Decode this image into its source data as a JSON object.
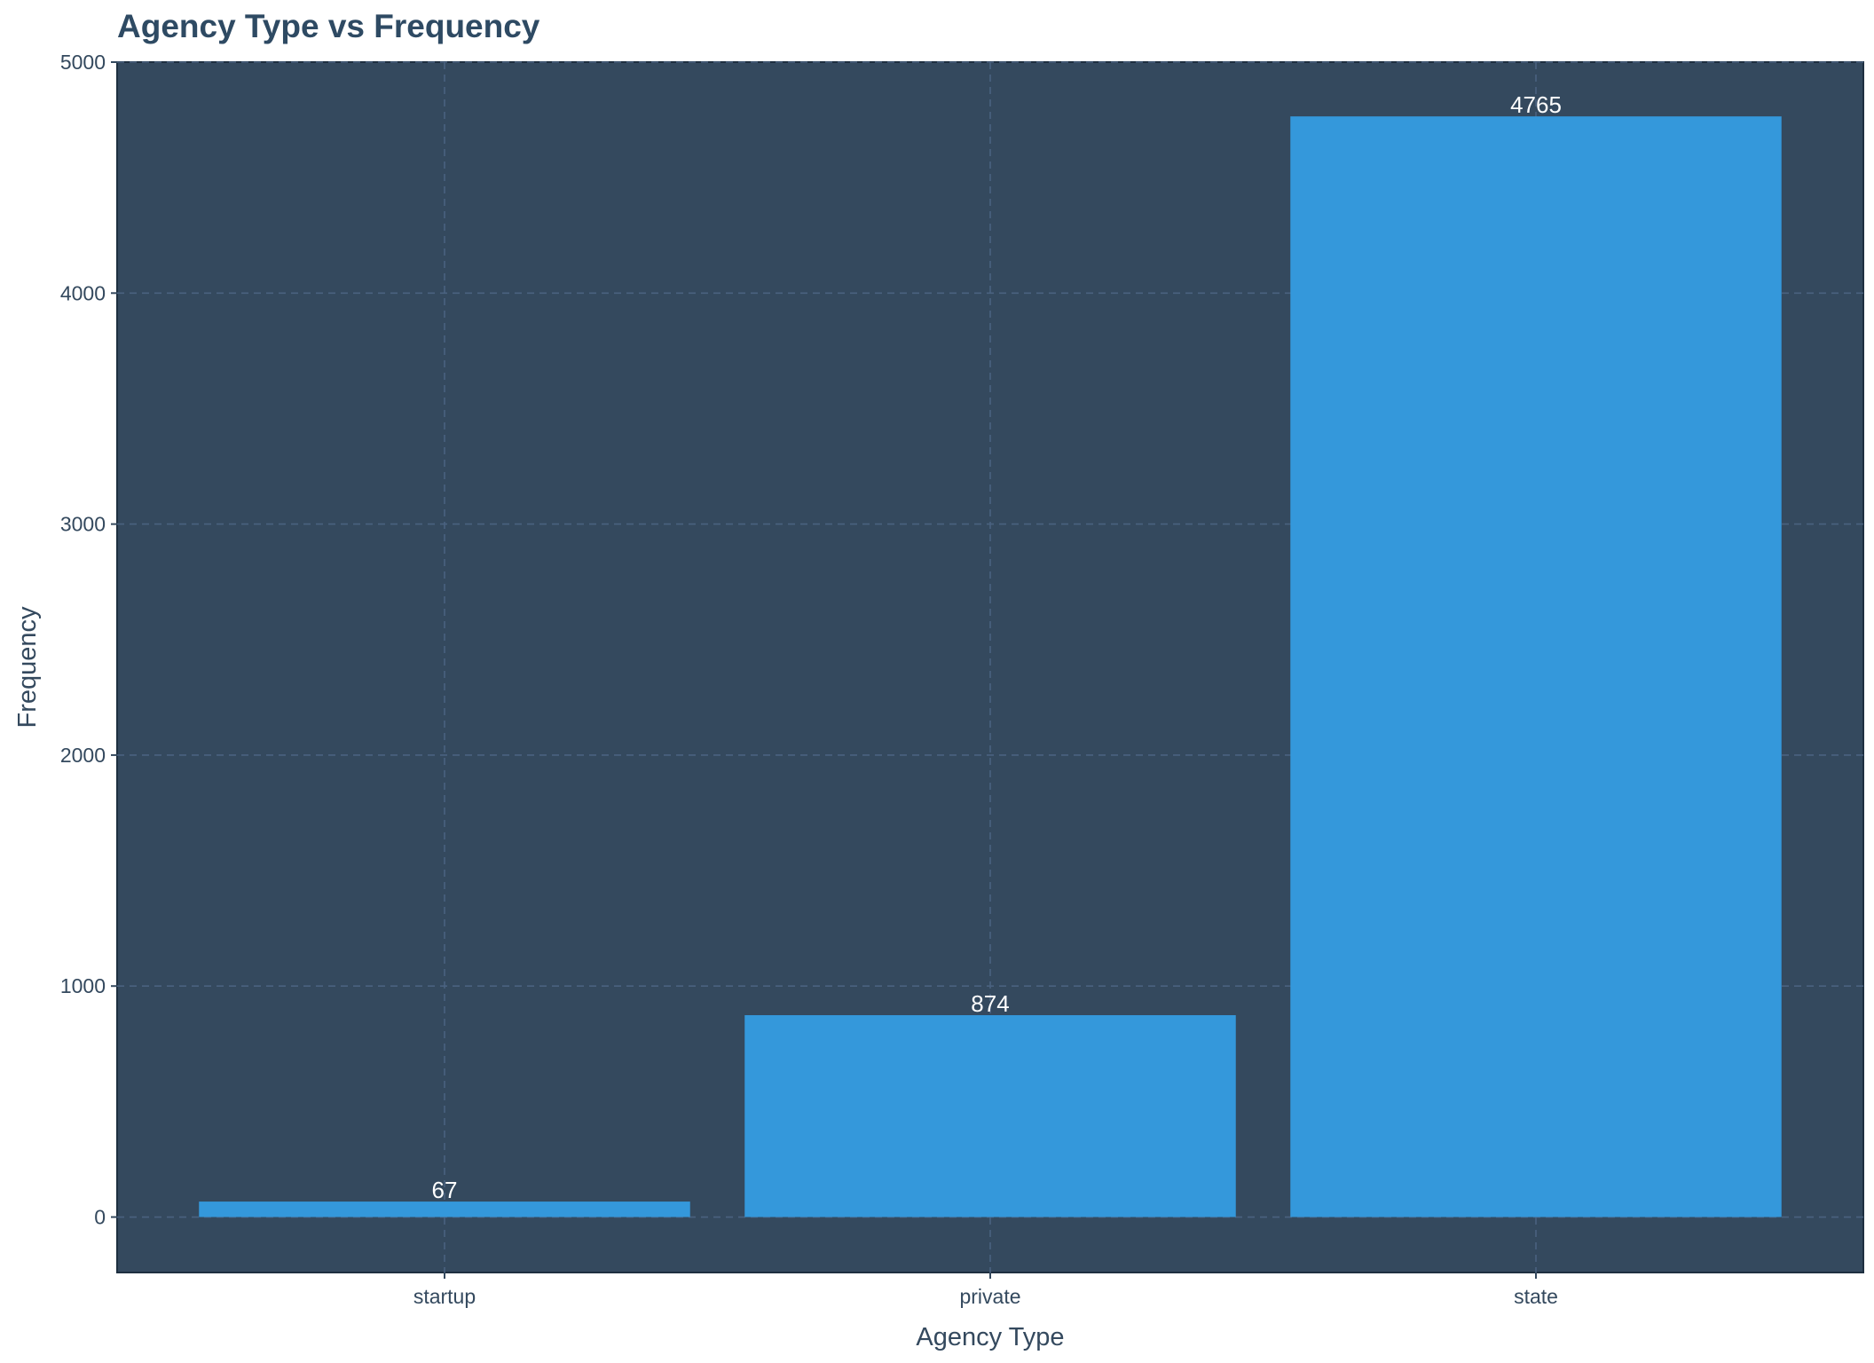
{
  "chart_data": {
    "type": "bar",
    "title": "Agency Type vs Frequency",
    "xlabel": "Agency Type",
    "ylabel": "Frequency",
    "categories": [
      "startup",
      "private",
      "state"
    ],
    "values": [
      67,
      874,
      4765
    ],
    "data_labels": [
      "67",
      "874",
      "4765"
    ],
    "y_ticks": [
      "0",
      "1000",
      "2000",
      "3000",
      "4000",
      "5000"
    ],
    "ylim": [
      -240,
      5000
    ],
    "grid": true,
    "legend": "none",
    "colors": {
      "bar": "#3498db",
      "panel_background": "#34495e",
      "page_background": "#ffffff",
      "grid": "#4a6280",
      "text": "#34495e",
      "title": "#2e4a63",
      "bar_label": "#ffffff"
    }
  }
}
